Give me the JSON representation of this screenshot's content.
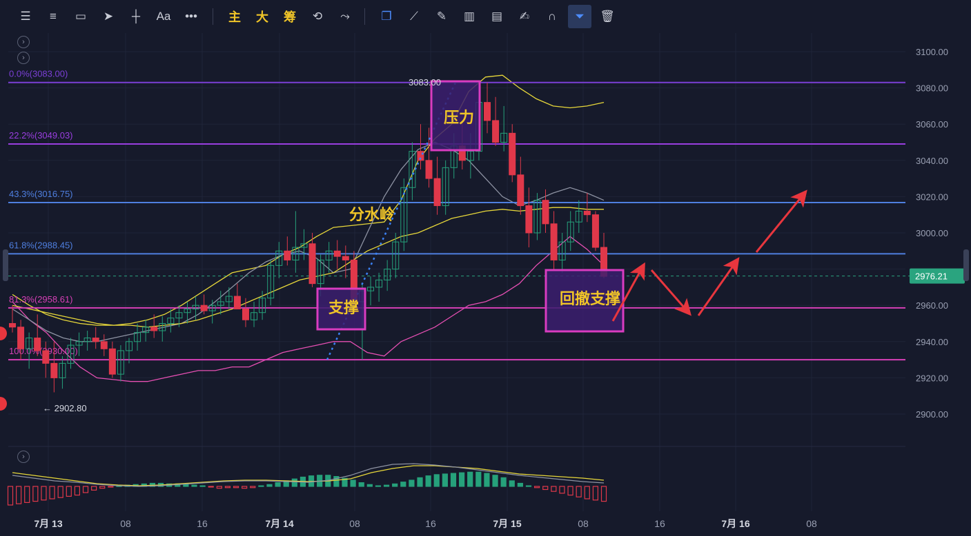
{
  "toolbar": {
    "items": [
      {
        "name": "indicator-settings-icon",
        "glyph": "☰"
      },
      {
        "name": "horizontal-lines-icon",
        "glyph": "≡"
      },
      {
        "name": "rectangle-icon",
        "glyph": "▭"
      },
      {
        "name": "cursor-arrow-icon",
        "glyph": "➤"
      },
      {
        "name": "horizontal-ray-icon",
        "glyph": "┼"
      },
      {
        "name": "text-tool-icon",
        "glyph": "Aa"
      },
      {
        "name": "more-icon",
        "glyph": "•••"
      }
    ],
    "chinese_buttons": [
      "主",
      "大",
      "筹"
    ],
    "right_items": [
      {
        "name": "auto-draw-icon",
        "glyph": "⟲"
      },
      {
        "name": "trend-tool-icon",
        "glyph": "⤳"
      },
      {
        "name": "copy-layer-icon",
        "glyph": "❐"
      },
      {
        "name": "ruler-icon",
        "glyph": "⟋"
      },
      {
        "name": "pen-icon",
        "glyph": "✎"
      },
      {
        "name": "candle-tool-icon",
        "glyph": "▥"
      },
      {
        "name": "clipboard-icon",
        "glyph": "▤"
      },
      {
        "name": "note-icon",
        "glyph": "✍"
      },
      {
        "name": "magnet-icon",
        "glyph": "∩"
      },
      {
        "name": "filter-icon",
        "glyph": "⏷"
      },
      {
        "name": "trash-icon",
        "glyph": "🗑"
      }
    ]
  },
  "colors": {
    "background": "#161a2b",
    "up": "#26a17b",
    "down": "#e0384a",
    "fib_0": "#7b3fd6",
    "fib_blue": "#4f7fe0",
    "fib_pink": "#d840b8",
    "ma_yellow": "#e8d83a",
    "ma_gray": "#8e93a3",
    "bb_pink": "#e64fb3",
    "annotation_arrow": "#e8363e",
    "box_border": "#d93cc0",
    "box_fill": "#3b1f6e",
    "label_text": "#f0c528",
    "price_tag": "#2aa47f"
  },
  "chart_data": {
    "type": "candlestick",
    "title": "",
    "ylim": [
      2890,
      3110
    ],
    "y_ticks": [
      "3100.00",
      "3080.00",
      "3060.00",
      "3040.00",
      "3020.00",
      "3000.00",
      "2980.00",
      "2960.00",
      "2940.00",
      "2920.00",
      "2900.00"
    ],
    "x_ticks": [
      "7月 13",
      "08",
      "16",
      "7月 14",
      "08",
      "16",
      "7月 15",
      "08",
      "16",
      "7月 16",
      "08"
    ],
    "current_price": "2976.21",
    "low_label": "← 2902.80",
    "high_label": "3083.00",
    "fib_levels": [
      {
        "label": "0.0%(3083.00)",
        "price": 3083.0,
        "color": "#7b3fd6"
      },
      {
        "label": "22.2%(3049.03)",
        "price": 3049.03,
        "color": "#9a3ee0"
      },
      {
        "label": "43.3%(3016.75)",
        "price": 3016.75,
        "color": "#4f7fe0"
      },
      {
        "label": "61.8%(2988.45)",
        "price": 2988.45,
        "color": "#4f7fe0"
      },
      {
        "label": "81.3%(2958.61)",
        "price": 2958.61,
        "color": "#d840b8"
      },
      {
        "label": "100.0%(2930.00)",
        "price": 2930.0,
        "color": "#d840b8"
      }
    ],
    "annotations": [
      "压力",
      "分水岭",
      "支撑",
      "回撤支撑"
    ],
    "candles": [
      [
        2950,
        2960,
        2945,
        2948
      ],
      [
        2948,
        2952,
        2930,
        2936
      ],
      [
        2936,
        2945,
        2925,
        2942
      ],
      [
        2942,
        2955,
        2932,
        2935
      ],
      [
        2935,
        2940,
        2920,
        2928
      ],
      [
        2928,
        2940,
        2912,
        2920
      ],
      [
        2920,
        2932,
        2914,
        2928
      ],
      [
        2928,
        2942,
        2925,
        2938
      ],
      [
        2938,
        2945,
        2932,
        2940
      ],
      [
        2940,
        2946,
        2935,
        2942
      ],
      [
        2942,
        2948,
        2936,
        2940
      ],
      [
        2940,
        2944,
        2932,
        2936
      ],
      [
        2936,
        2940,
        2920,
        2922
      ],
      [
        2922,
        2938,
        2918,
        2935
      ],
      [
        2935,
        2942,
        2928,
        2940
      ],
      [
        2940,
        2950,
        2935,
        2945
      ],
      [
        2945,
        2952,
        2940,
        2948
      ],
      [
        2948,
        2955,
        2942,
        2946
      ],
      [
        2946,
        2954,
        2940,
        2950
      ],
      [
        2950,
        2958,
        2945,
        2953
      ],
      [
        2953,
        2960,
        2948,
        2956
      ],
      [
        2956,
        2962,
        2950,
        2958
      ],
      [
        2958,
        2965,
        2952,
        2960
      ],
      [
        2960,
        2966,
        2955,
        2957
      ],
      [
        2957,
        2963,
        2950,
        2960
      ],
      [
        2960,
        2968,
        2955,
        2962
      ],
      [
        2962,
        2970,
        2958,
        2965
      ],
      [
        2965,
        2972,
        2960,
        2958
      ],
      [
        2958,
        2964,
        2948,
        2952
      ],
      [
        2952,
        2962,
        2948,
        2956
      ],
      [
        2956,
        2968,
        2952,
        2964
      ],
      [
        2964,
        2985,
        2960,
        2982
      ],
      [
        2982,
        2995,
        2975,
        2990
      ],
      [
        2990,
        2998,
        2982,
        2985
      ],
      [
        2985,
        3012,
        2978,
        2992
      ],
      [
        2992,
        3002,
        2985,
        2994
      ],
      [
        2994,
        3000,
        2970,
        2972
      ],
      [
        2972,
        2988,
        2965,
        2985
      ],
      [
        2985,
        2995,
        2978,
        2990
      ],
      [
        2990,
        2996,
        2980,
        2987
      ],
      [
        2987,
        2993,
        2975,
        2985
      ],
      [
        2985,
        2990,
        2960,
        2962
      ],
      [
        2962,
        2972,
        2930,
        2968
      ],
      [
        2968,
        2976,
        2960,
        2970
      ],
      [
        2970,
        2978,
        2962,
        2974
      ],
      [
        2974,
        2985,
        2968,
        2980
      ],
      [
        2980,
        3000,
        2975,
        2995
      ],
      [
        2995,
        3030,
        2990,
        3025
      ],
      [
        3025,
        3050,
        3018,
        3045
      ],
      [
        3045,
        3060,
        3035,
        3040
      ],
      [
        3040,
        3058,
        3025,
        3030
      ],
      [
        3030,
        3042,
        3010,
        3015
      ],
      [
        3015,
        3040,
        3010,
        3036
      ],
      [
        3036,
        3055,
        3030,
        3048
      ],
      [
        3048,
        3062,
        3035,
        3040
      ],
      [
        3040,
        3055,
        3030,
        3045
      ],
      [
        3045,
        3075,
        3040,
        3072
      ],
      [
        3072,
        3083,
        3055,
        3062
      ],
      [
        3062,
        3075,
        3048,
        3050
      ],
      [
        3050,
        3070,
        3045,
        3055
      ],
      [
        3055,
        3060,
        3028,
        3032
      ],
      [
        3032,
        3042,
        3010,
        3015
      ],
      [
        3015,
        3025,
        2992,
        3000
      ],
      [
        3000,
        3022,
        2996,
        3018
      ],
      [
        3018,
        3024,
        3000,
        3005
      ],
      [
        3005,
        3012,
        2980,
        2985
      ],
      [
        2985,
        3000,
        2978,
        2995
      ],
      [
        2995,
        3012,
        2990,
        3006
      ],
      [
        3006,
        3018,
        3000,
        3012
      ],
      [
        3012,
        3022,
        3006,
        3010
      ],
      [
        3010,
        3012,
        2990,
        2992
      ],
      [
        2992,
        3000,
        2975,
        2976
      ]
    ]
  }
}
